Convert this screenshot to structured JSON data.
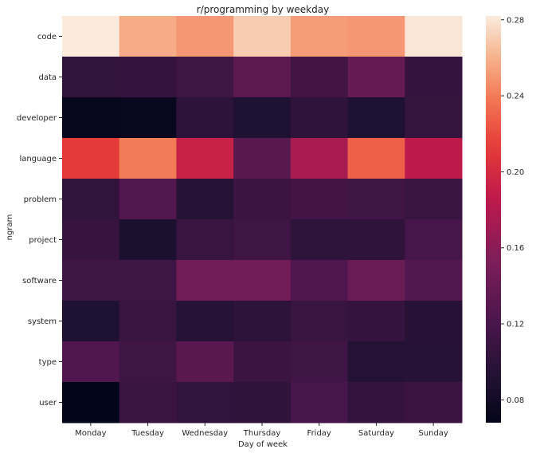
{
  "chart_data": {
    "type": "heatmap",
    "title": "r/programming by weekday",
    "xlabel": "Day of week",
    "ylabel": "ngram",
    "x_categories": [
      "Monday",
      "Tuesday",
      "Wednesday",
      "Thursday",
      "Friday",
      "Saturday",
      "Sunday"
    ],
    "y_categories": [
      "code",
      "data",
      "developer",
      "language",
      "problem",
      "project",
      "software",
      "system",
      "type",
      "user"
    ],
    "values": [
      [
        0.282,
        0.258,
        0.25,
        0.27,
        0.252,
        0.25,
        0.28
      ],
      [
        0.103,
        0.105,
        0.112,
        0.132,
        0.115,
        0.138,
        0.105
      ],
      [
        0.072,
        0.073,
        0.1,
        0.09,
        0.102,
        0.09,
        0.106
      ],
      [
        0.213,
        0.24,
        0.192,
        0.13,
        0.174,
        0.228,
        0.185
      ],
      [
        0.103,
        0.125,
        0.095,
        0.11,
        0.115,
        0.112,
        0.108
      ],
      [
        0.107,
        0.088,
        0.108,
        0.112,
        0.101,
        0.102,
        0.118
      ],
      [
        0.112,
        0.113,
        0.145,
        0.146,
        0.124,
        0.14,
        0.126
      ],
      [
        0.09,
        0.108,
        0.095,
        0.1,
        0.108,
        0.105,
        0.096
      ],
      [
        0.124,
        0.112,
        0.13,
        0.11,
        0.112,
        0.093,
        0.095
      ],
      [
        0.068,
        0.109,
        0.104,
        0.102,
        0.118,
        0.105,
        0.11
      ]
    ],
    "colorbar": {
      "min": 0.068,
      "max": 0.282,
      "ticks": [
        "0.08",
        "0.12",
        "0.16",
        "0.20",
        "0.24",
        "0.28"
      ],
      "colormap": "rocket"
    },
    "grid": false,
    "legend": "colorbar-right"
  }
}
